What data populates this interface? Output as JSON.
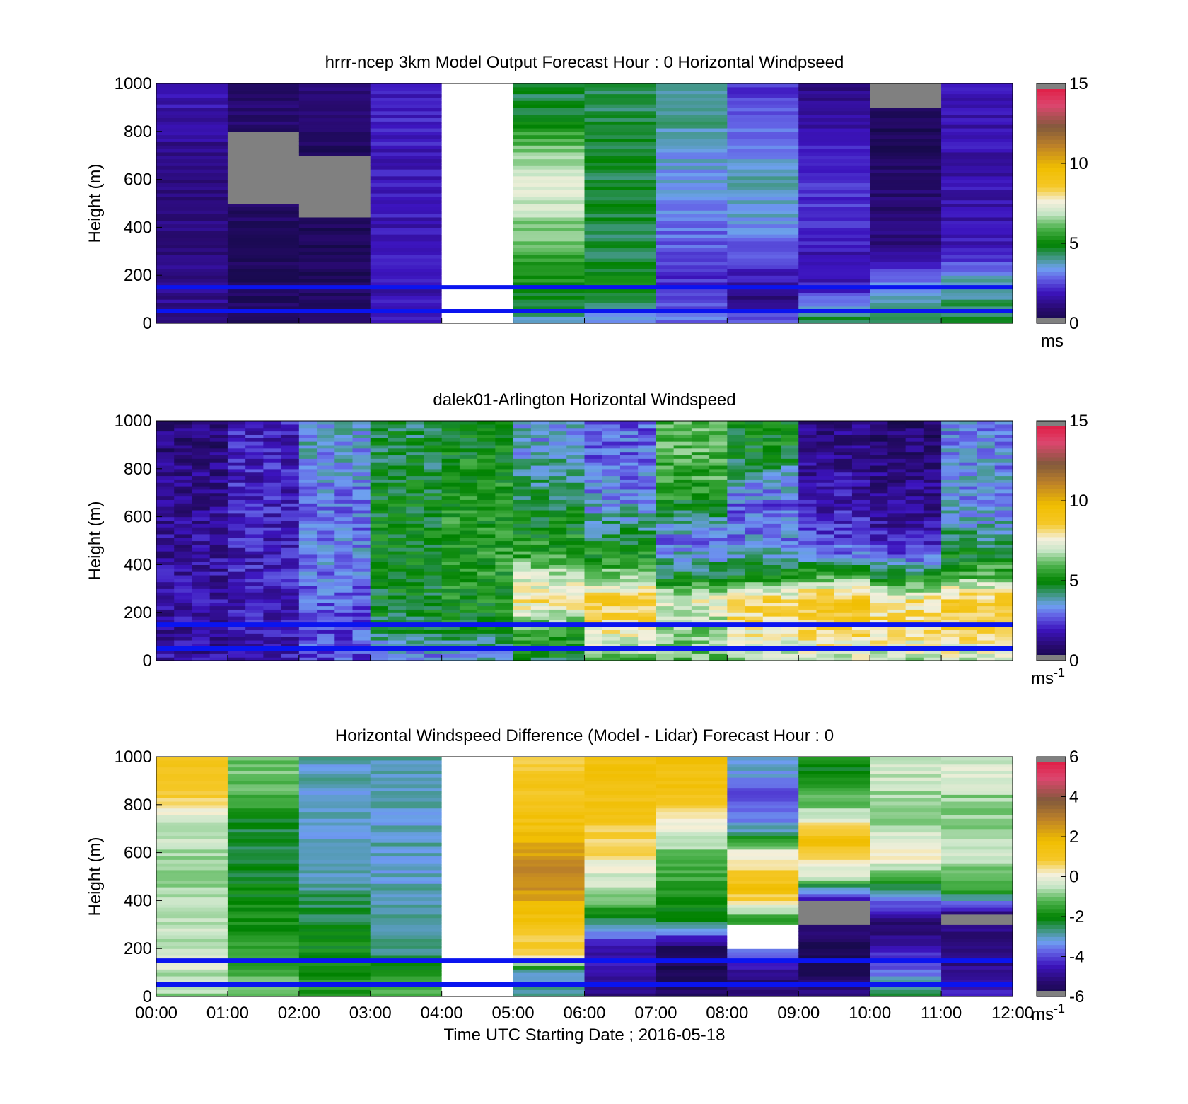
{
  "chart_data": [
    {
      "type": "heatmap",
      "title": "hrrr-ncep 3km Model Output   Forecast Hour : 0 Horizontal Windpseed",
      "xlabel": "",
      "ylabel": "Height (m)",
      "xlim": [
        0,
        12
      ],
      "ylim": [
        0,
        1000
      ],
      "yticks": [
        "0",
        "200",
        "400",
        "600",
        "800",
        "1000"
      ],
      "colorbar": {
        "min": 0,
        "max": 15,
        "ticks": [
          "0",
          "5",
          "10",
          "15"
        ],
        "unit": "ms",
        "unit_sup": ""
      },
      "reference_lines_m": [
        50,
        150
      ],
      "hours": [
        0,
        1,
        2,
        3,
        4,
        5,
        6,
        7,
        8,
        9,
        10,
        11
      ],
      "profiles": [
        {
          "hour": 0,
          "levels": [
            [
              0,
              1.5
            ],
            [
              150,
              1.2
            ],
            [
              300,
              1.0
            ],
            [
              500,
              1.0
            ],
            [
              700,
              1.3
            ],
            [
              900,
              1.8
            ]
          ]
        },
        {
          "hour": 1,
          "levels": [
            [
              0,
              0.6
            ],
            [
              300,
              0.6
            ],
            [
              500,
              "missing"
            ],
            [
              800,
              0.6
            ],
            [
              900,
              0.9
            ]
          ]
        },
        {
          "hour": 2,
          "levels": [
            [
              0,
              0.6
            ],
            [
              300,
              0.5
            ],
            [
              450,
              "missing"
            ],
            [
              700,
              0.5
            ],
            [
              900,
              0.9
            ]
          ]
        },
        {
          "hour": 3,
          "levels": [
            [
              0,
              1.8
            ],
            [
              500,
              1.9
            ],
            [
              900,
              2.0
            ]
          ]
        },
        {
          "hour": 4,
          "levels": [
            [
              0,
              "none"
            ],
            [
              1000,
              "none"
            ]
          ]
        },
        {
          "hour": 5,
          "levels": [
            [
              0,
              3.5
            ],
            [
              50,
              4.5
            ],
            [
              150,
              5.0
            ],
            [
              250,
              5.6
            ],
            [
              400,
              6.4
            ],
            [
              500,
              7.0
            ],
            [
              550,
              7.5
            ],
            [
              650,
              6.8
            ],
            [
              750,
              6.0
            ],
            [
              850,
              5.0
            ],
            [
              920,
              4.5
            ]
          ]
        },
        {
          "hour": 6,
          "levels": [
            [
              0,
              3.2
            ],
            [
              150,
              5.0
            ],
            [
              300,
              4.5
            ],
            [
              700,
              4.6
            ],
            [
              900,
              4.4
            ]
          ]
        },
        {
          "hour": 7,
          "levels": [
            [
              0,
              3.0
            ],
            [
              150,
              2.2
            ],
            [
              300,
              2.6
            ],
            [
              450,
              3.3
            ],
            [
              700,
              3.5
            ],
            [
              900,
              4.2
            ]
          ]
        },
        {
          "hour": 8,
          "levels": [
            [
              0,
              3.0
            ],
            [
              100,
              1.2
            ],
            [
              300,
              2.6
            ],
            [
              450,
              3.6
            ],
            [
              600,
              3.8
            ],
            [
              750,
              3.0
            ],
            [
              900,
              2.5
            ]
          ]
        },
        {
          "hour": 9,
          "levels": [
            [
              0,
              4.8
            ],
            [
              150,
              2.0
            ],
            [
              250,
              1.5
            ],
            [
              400,
              2.3
            ],
            [
              600,
              2.2
            ],
            [
              800,
              1.8
            ],
            [
              950,
              1.2
            ]
          ]
        },
        {
          "hour": 10,
          "levels": [
            [
              0,
              4.5
            ],
            [
              150,
              3.5
            ],
            [
              250,
              2.0
            ],
            [
              350,
              1.0
            ],
            [
              600,
              0.8
            ],
            [
              750,
              0.5
            ],
            [
              900,
              "missing"
            ]
          ]
        },
        {
          "hour": 11,
          "levels": [
            [
              0,
              4.6
            ],
            [
              150,
              4.0
            ],
            [
              250,
              2.7
            ],
            [
              300,
              1.8
            ],
            [
              900,
              1.7
            ]
          ]
        }
      ]
    },
    {
      "type": "heatmap",
      "title": "dalek01-Arlington  Horizontal Windspeed",
      "xlabel": "",
      "ylabel": "Height (m)",
      "xlim": [
        0,
        12
      ],
      "ylim": [
        0,
        1000
      ],
      "yticks": [
        "0",
        "200",
        "400",
        "600",
        "800",
        "1000"
      ],
      "colorbar": {
        "min": 0,
        "max": 15,
        "ticks": [
          "0",
          "5",
          "10",
          "15"
        ],
        "unit": "ms",
        "unit_sup": "-1"
      },
      "reference_lines_m": [
        50,
        150
      ],
      "hours": [
        0,
        1,
        2,
        3,
        4,
        5,
        6,
        7,
        8,
        9,
        10,
        11
      ],
      "profiles": [
        {
          "hour": 0,
          "levels": [
            [
              0,
              1.5
            ],
            [
              300,
              1.6
            ],
            [
              600,
              1.4
            ],
            [
              900,
              1.0
            ]
          ]
        },
        {
          "hour": 1,
          "levels": [
            [
              0,
              1.8
            ],
            [
              300,
              2.0
            ],
            [
              600,
              2.0
            ],
            [
              900,
              2.0
            ]
          ]
        },
        {
          "hour": 2,
          "levels": [
            [
              0,
              2.5
            ],
            [
              300,
              2.8
            ],
            [
              450,
              3.2
            ],
            [
              600,
              3.0
            ],
            [
              900,
              3.5
            ]
          ]
        },
        {
          "hour": 3,
          "levels": [
            [
              0,
              3.0
            ],
            [
              150,
              4.6
            ],
            [
              400,
              5.0
            ],
            [
              700,
              4.8
            ],
            [
              900,
              4.5
            ]
          ]
        },
        {
          "hour": 4,
          "levels": [
            [
              0,
              3.5
            ],
            [
              150,
              5.0
            ],
            [
              400,
              5.4
            ],
            [
              700,
              5.3
            ],
            [
              900,
              5.0
            ]
          ]
        },
        {
          "hour": 5,
          "levels": [
            [
              0,
              4.5
            ],
            [
              150,
              6.0
            ],
            [
              250,
              8.0
            ],
            [
              350,
              7.0
            ],
            [
              450,
              5.5
            ],
            [
              700,
              4.5
            ],
            [
              900,
              3.5
            ]
          ]
        },
        {
          "hour": 6,
          "levels": [
            [
              0,
              6.0
            ],
            [
              100,
              7.5
            ],
            [
              250,
              8.8
            ],
            [
              350,
              6.5
            ],
            [
              500,
              4.5
            ],
            [
              700,
              3.2
            ],
            [
              900,
              2.8
            ]
          ]
        },
        {
          "hour": 7,
          "levels": [
            [
              0,
              6.0
            ],
            [
              150,
              6.5
            ],
            [
              250,
              7.5
            ],
            [
              350,
              4.8
            ],
            [
              500,
              3.0
            ],
            [
              700,
              5.5
            ],
            [
              850,
              6.0
            ]
          ]
        },
        {
          "hour": 8,
          "levels": [
            [
              0,
              6.5
            ],
            [
              150,
              8.0
            ],
            [
              250,
              8.5
            ],
            [
              350,
              5.0
            ],
            [
              500,
              3.2
            ],
            [
              650,
              2.8
            ],
            [
              900,
              5.0
            ]
          ]
        },
        {
          "hour": 9,
          "levels": [
            [
              0,
              7.0
            ],
            [
              150,
              8.5
            ],
            [
              250,
              9.0
            ],
            [
              350,
              6.0
            ],
            [
              450,
              3.0
            ],
            [
              600,
              2.0
            ],
            [
              900,
              1.2
            ]
          ]
        },
        {
          "hour": 10,
          "levels": [
            [
              0,
              6.8
            ],
            [
              150,
              8.3
            ],
            [
              250,
              8.0
            ],
            [
              350,
              5.0
            ],
            [
              450,
              2.5
            ],
            [
              600,
              1.5
            ],
            [
              900,
              0.9
            ]
          ]
        },
        {
          "hour": 11,
          "levels": [
            [
              0,
              7.0
            ],
            [
              150,
              8.5
            ],
            [
              250,
              8.8
            ],
            [
              350,
              6.0
            ],
            [
              450,
              4.8
            ],
            [
              600,
              3.5
            ],
            [
              900,
              3.2
            ]
          ]
        }
      ]
    },
    {
      "type": "heatmap",
      "title": "Horizontal Windspeed Difference (Model - Lidar) Forecast Hour : 0",
      "xlabel": "Time UTC  Starting Date ; 2016-05-18",
      "ylabel": "Height (m)",
      "xlim": [
        0,
        12
      ],
      "ylim": [
        0,
        1000
      ],
      "xticks": [
        "00:00",
        "01:00",
        "02:00",
        "03:00",
        "04:00",
        "05:00",
        "06:00",
        "07:00",
        "08:00",
        "09:00",
        "10:00",
        "11:00",
        "12:00"
      ],
      "yticks": [
        "0",
        "200",
        "400",
        "600",
        "800",
        "1000"
      ],
      "colorbar": {
        "min": -6,
        "max": 6,
        "ticks": [
          "-6",
          "-4",
          "-2",
          "0",
          "2",
          "4",
          "6"
        ],
        "unit": "ms",
        "unit_sup": "-1"
      },
      "reference_lines_m": [
        50,
        150
      ],
      "hours": [
        0,
        1,
        2,
        3,
        4,
        5,
        6,
        7,
        8,
        9,
        10,
        11
      ],
      "profiles": [
        {
          "hour": 0,
          "levels": [
            [
              0,
              -0.8
            ],
            [
              150,
              -0.3
            ],
            [
              300,
              -0.6
            ],
            [
              500,
              -0.9
            ],
            [
              700,
              -0.5
            ],
            [
              800,
              0.5
            ],
            [
              900,
              1.2
            ]
          ]
        },
        {
          "hour": 1,
          "levels": [
            [
              0,
              -1.0
            ],
            [
              300,
              -1.8
            ],
            [
              500,
              -2.2
            ],
            [
              700,
              -2.3
            ],
            [
              900,
              -1.0
            ]
          ]
        },
        {
          "hour": 2,
          "levels": [
            [
              0,
              -1.5
            ],
            [
              300,
              -2.2
            ],
            [
              500,
              -2.8
            ],
            [
              700,
              -3.0
            ],
            [
              900,
              -3.0
            ]
          ]
        },
        {
          "hour": 3,
          "levels": [
            [
              0,
              -1.0
            ],
            [
              200,
              -2.8
            ],
            [
              500,
              -3.0
            ],
            [
              900,
              -3.0
            ]
          ]
        },
        {
          "hour": 4,
          "levels": [
            [
              0,
              "none"
            ],
            [
              1000,
              "none"
            ]
          ]
        },
        {
          "hour": 5,
          "levels": [
            [
              0,
              -2.8
            ],
            [
              100,
              -3.0
            ],
            [
              150,
              0.5
            ],
            [
              300,
              1.2
            ],
            [
              450,
              2.5
            ],
            [
              550,
              2.8
            ],
            [
              700,
              1.5
            ],
            [
              900,
              1.0
            ]
          ]
        },
        {
          "hour": 6,
          "levels": [
            [
              0,
              -5.0
            ],
            [
              200,
              -4.5
            ],
            [
              300,
              -3.0
            ],
            [
              400,
              -1.0
            ],
            [
              600,
              0.5
            ],
            [
              800,
              1.3
            ],
            [
              900,
              1.5
            ]
          ]
        },
        {
          "hour": 7,
          "levels": [
            [
              0,
              -5.5
            ],
            [
              200,
              -5.8
            ],
            [
              300,
              -2.5
            ],
            [
              450,
              -1.5
            ],
            [
              600,
              -1.0
            ],
            [
              750,
              0.5
            ],
            [
              900,
              1.5
            ]
          ]
        },
        {
          "hour": 8,
          "levels": [
            [
              0,
              -5.5
            ],
            [
              100,
              -5.0
            ],
            [
              200,
              "none"
            ],
            [
              300,
              -2.0
            ],
            [
              450,
              1.5
            ],
            [
              600,
              0.0
            ],
            [
              700,
              -3.0
            ],
            [
              850,
              -4.2
            ],
            [
              950,
              -3.0
            ]
          ]
        },
        {
          "hour": 9,
          "levels": [
            [
              0,
              -5.0
            ],
            [
              150,
              -5.8
            ],
            [
              300,
              "missing"
            ],
            [
              400,
              -5.0
            ],
            [
              500,
              -0.5
            ],
            [
              650,
              1.5
            ],
            [
              800,
              -1.0
            ],
            [
              950,
              -2.0
            ]
          ]
        },
        {
          "hour": 10,
          "levels": [
            [
              0,
              -2.5
            ],
            [
              150,
              -4.0
            ],
            [
              300,
              -5.5
            ],
            [
              450,
              -2.5
            ],
            [
              600,
              0.5
            ],
            [
              750,
              -1.0
            ],
            [
              900,
              -0.5
            ]
          ]
        },
        {
          "hour": 11,
          "levels": [
            [
              0,
              -4.2
            ],
            [
              150,
              -5.0
            ],
            [
              300,
              "missing"
            ],
            [
              350,
              -5.0
            ],
            [
              450,
              -1.5
            ],
            [
              600,
              -0.5
            ],
            [
              800,
              -1.0
            ],
            [
              900,
              -0.3
            ]
          ]
        }
      ]
    }
  ]
}
